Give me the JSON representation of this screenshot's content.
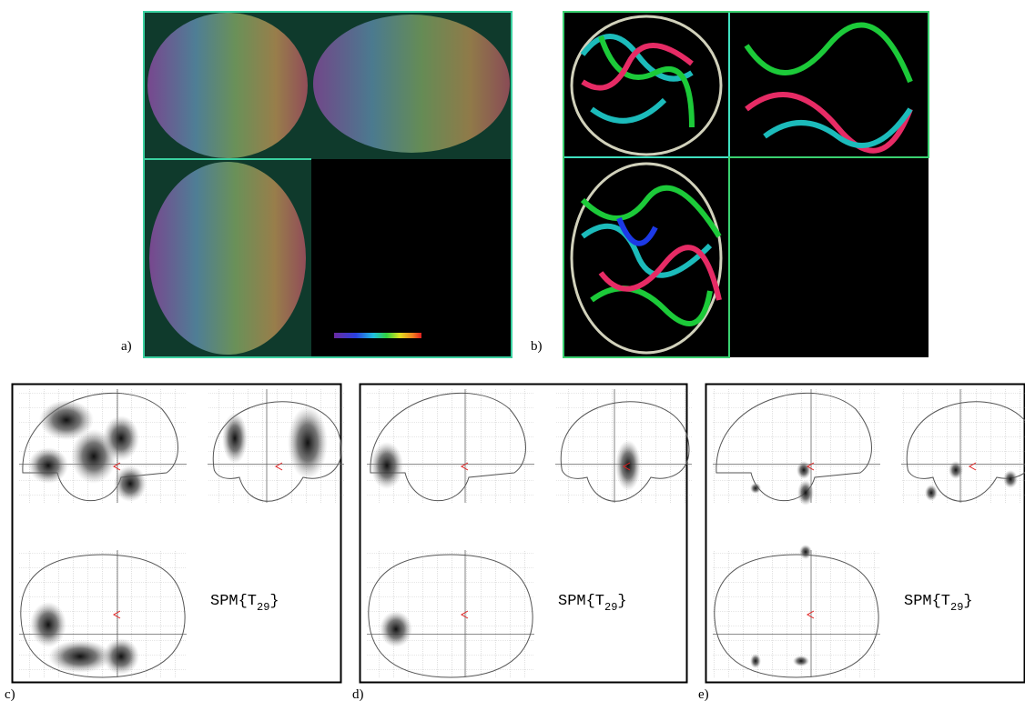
{
  "panels": [
    {
      "label": "a)"
    },
    {
      "label": "b)"
    },
    {
      "label": "c)",
      "stat": {
        "prefix": "SPM{T",
        "subscript": "29",
        "suffix": "}"
      }
    },
    {
      "label": "d)",
      "stat": {
        "prefix": "SPM{T",
        "subscript": "29",
        "suffix": "}"
      }
    },
    {
      "label": "e)",
      "stat": {
        "prefix": "SPM{T",
        "subscript": "29",
        "suffix": "}"
      }
    }
  ]
}
